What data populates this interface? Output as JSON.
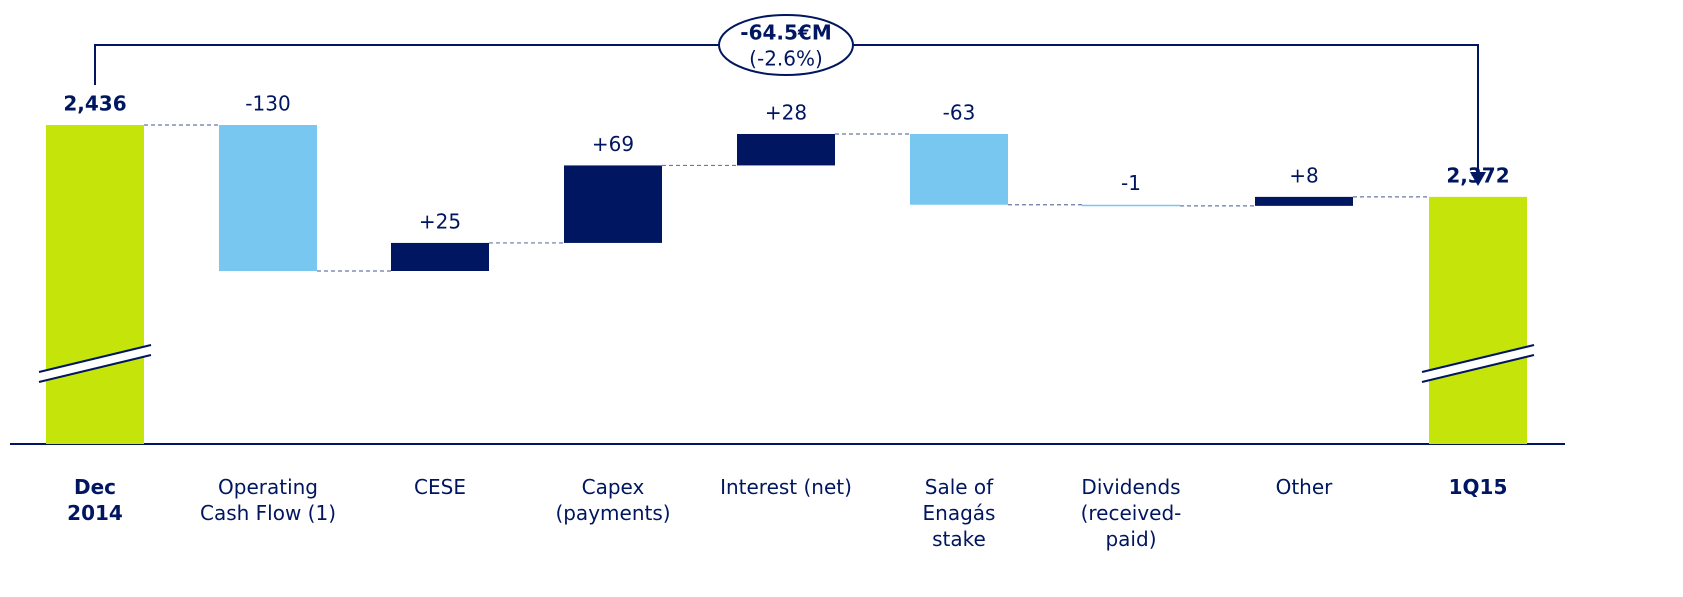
{
  "chart_data": {
    "type": "waterfall",
    "categories": [
      "Dec 2014",
      "Operating Cash Flow (1)",
      "CESE",
      "Capex (payments)",
      "Interest (net)",
      "Sale of Enagás stake",
      "Dividends (received-paid)",
      "Other",
      "1Q15"
    ],
    "values": [
      2436,
      -130,
      25,
      69,
      28,
      -63,
      -1,
      8,
      2372
    ],
    "value_labels": [
      "2,436",
      "-130",
      "+25",
      "+69",
      "+28",
      "-63",
      "-1",
      "+8",
      "2,372"
    ],
    "totals": [
      true,
      false,
      false,
      false,
      false,
      false,
      false,
      false,
      true
    ],
    "colors": {
      "total": "#c5e40a",
      "increase": "#001660",
      "decrease": "#77c7f0"
    },
    "annotation": {
      "change": "-64.5€M",
      "percent": "(-2.6%)"
    }
  }
}
